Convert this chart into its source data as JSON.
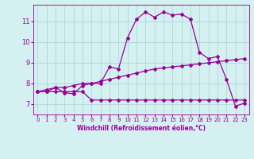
{
  "background_color": "#d4f0f0",
  "grid_color": "#b0d8d8",
  "line_color": "#990099",
  "marker_color": "#990099",
  "xlabel": "Windchill (Refroidissement éolien,°C)",
  "xlabel_color": "#990099",
  "tick_color": "#990099",
  "xlim": [
    -0.5,
    23.5
  ],
  "ylim": [
    6.5,
    11.8
  ],
  "yticks": [
    7,
    8,
    9,
    10,
    11
  ],
  "xticks": [
    0,
    1,
    2,
    3,
    4,
    5,
    6,
    7,
    8,
    9,
    10,
    11,
    12,
    13,
    14,
    15,
    16,
    17,
    18,
    19,
    20,
    21,
    22,
    23
  ],
  "line1_x": [
    0,
    1,
    2,
    3,
    4,
    5,
    6,
    7,
    8,
    9,
    10,
    11,
    12,
    13,
    14,
    15,
    16,
    17,
    18,
    19,
    20,
    21,
    22,
    23
  ],
  "line1_y": [
    7.6,
    7.6,
    7.6,
    7.6,
    7.6,
    7.6,
    7.2,
    7.2,
    7.2,
    7.2,
    7.2,
    7.2,
    7.2,
    7.2,
    7.2,
    7.2,
    7.2,
    7.2,
    7.2,
    7.2,
    7.2,
    7.2,
    7.2,
    7.2
  ],
  "line2_x": [
    0,
    1,
    2,
    3,
    4,
    5,
    6,
    7,
    8,
    9,
    10,
    11,
    12,
    13,
    14,
    15,
    16,
    17,
    18,
    19,
    20,
    21,
    22,
    23
  ],
  "line2_y": [
    7.6,
    7.6,
    7.8,
    7.8,
    7.9,
    8.0,
    8.0,
    8.1,
    8.2,
    8.3,
    8.4,
    8.5,
    8.6,
    8.7,
    8.75,
    8.8,
    8.85,
    8.9,
    8.95,
    9.0,
    9.05,
    9.1,
    9.15,
    9.2
  ],
  "line3_x": [
    0,
    1,
    2,
    3,
    4,
    5,
    6,
    7,
    8,
    9,
    10,
    11,
    12,
    13,
    14,
    15,
    16,
    17,
    18,
    19,
    20,
    21,
    22,
    23
  ],
  "line3_y": [
    7.6,
    7.7,
    7.8,
    7.55,
    7.5,
    7.9,
    8.0,
    8.0,
    8.8,
    8.7,
    10.2,
    11.1,
    11.45,
    11.2,
    11.45,
    11.3,
    11.35,
    11.1,
    9.5,
    9.2,
    9.3,
    8.2,
    6.9,
    7.05
  ]
}
